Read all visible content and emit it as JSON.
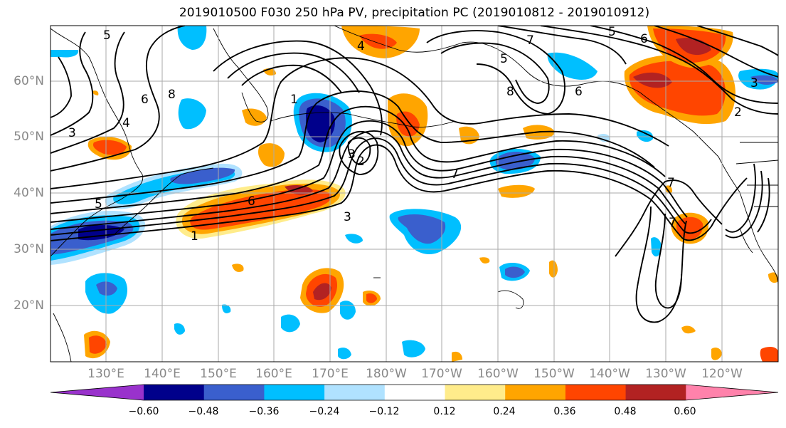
{
  "title": "2019010500 F030 250 hPa PV, precipitation PC (2019010812 - 2019010912)",
  "lat_labels": [
    "60°N",
    "50°N",
    "40°N",
    "30°N",
    "20°N"
  ],
  "lon_labels": [
    "130°E",
    "140°E",
    "150°E",
    "160°E",
    "170°E",
    "180°W",
    "170°W",
    "160°W",
    "150°W",
    "140°W",
    "130°W",
    "120°W"
  ],
  "colorbar": {
    "colors": [
      "#9932cc",
      "#00008b",
      "#3a5fcd",
      "#00bfff",
      "#b0e2ff",
      "#ffffff",
      "#ffec8b",
      "#ffa500",
      "#ff4500",
      "#b22222",
      "#ff82ab"
    ],
    "ticks": [
      "−0.60",
      "−0.48",
      "−0.36",
      "−0.24",
      "−0.12",
      "0.12",
      "0.24",
      "0.36",
      "0.48",
      "0.60"
    ]
  },
  "contour_labels": [
    "5",
    "5",
    "7",
    "5",
    "6",
    "6",
    "1",
    "2",
    "3",
    "3",
    "4",
    "6",
    "8",
    "7",
    "3",
    "2",
    "6",
    "3",
    "1",
    "7",
    "8",
    "5",
    "4",
    "7"
  ]
}
